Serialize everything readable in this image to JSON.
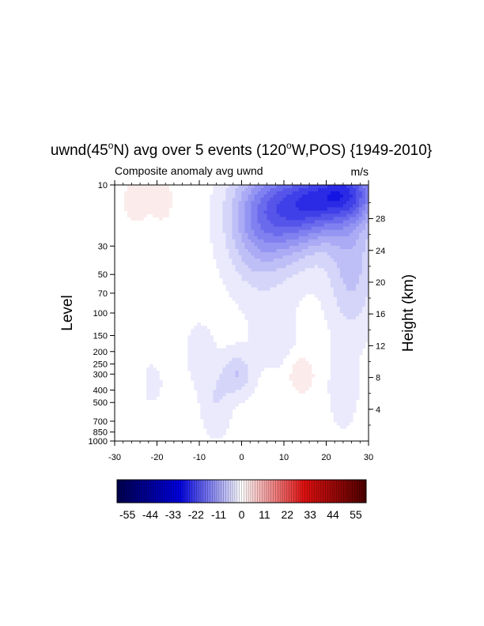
{
  "chart_data": {
    "type": "heatmap",
    "title_main": "uwnd(45",
    "title_sup": "o",
    "title_mid": "N) avg over 5 events (120",
    "title_sup2": "o",
    "title_end": "W,POS) {1949-2010}",
    "subtitle_left": "Composite anomaly avg uwnd",
    "subtitle_right": "m/s",
    "ylabel": "Level",
    "y2label": "Height (km)",
    "xlabel": "",
    "xlim": [
      -30,
      30
    ],
    "ylim": [
      1000,
      10
    ],
    "y_scale": "log",
    "x_ticks": [
      {
        "v": -30,
        "label": "-30"
      },
      {
        "v": -20,
        "label": "-20"
      },
      {
        "v": -10,
        "label": "-10"
      },
      {
        "v": 0,
        "label": "0"
      },
      {
        "v": 10,
        "label": "10"
      },
      {
        "v": 20,
        "label": "20"
      },
      {
        "v": 30,
        "label": "30"
      }
    ],
    "y_ticks": [
      {
        "v": 1000,
        "label": "1000"
      },
      {
        "v": 850,
        "label": "850"
      },
      {
        "v": 700,
        "label": "700"
      },
      {
        "v": 500,
        "label": "500"
      },
      {
        "v": 400,
        "label": "400"
      },
      {
        "v": 300,
        "label": "300"
      },
      {
        "v": 250,
        "label": "250"
      },
      {
        "v": 200,
        "label": "200"
      },
      {
        "v": 150,
        "label": "150"
      },
      {
        "v": 100,
        "label": "100"
      },
      {
        "v": 70,
        "label": "70"
      },
      {
        "v": 50,
        "label": "50"
      },
      {
        "v": 30,
        "label": "30"
      },
      {
        "v": 10,
        "label": "10"
      }
    ],
    "y2_ticks": [
      {
        "v": 4,
        "label": "4"
      },
      {
        "v": 8,
        "label": "8"
      },
      {
        "v": 12,
        "label": "12"
      },
      {
        "v": 16,
        "label": "16"
      },
      {
        "v": 20,
        "label": "20"
      },
      {
        "v": 24,
        "label": "24"
      },
      {
        "v": 28,
        "label": "28"
      }
    ],
    "scale_height_km": 7,
    "colorbar": {
      "range": [
        -60,
        60
      ],
      "labels": [
        "-55",
        "-44",
        "-33",
        "-22",
        "-11",
        "0",
        "11",
        "22",
        "33",
        "44",
        "55"
      ],
      "label_values": [
        -55,
        -44,
        -33,
        -22,
        -11,
        0,
        11,
        22,
        33,
        44,
        55
      ],
      "colors": {
        "neg_end": "#00004d",
        "neg_mid": "#0000e0",
        "zero": "#ffffff",
        "pos_mid": "#e01010",
        "pos_end": "#4d0000"
      }
    },
    "field_features": [
      {
        "x": 18,
        "p": 13,
        "v": -18,
        "sx": 9,
        "sp": 0.45
      },
      {
        "x": 25,
        "p": 11,
        "v": -10,
        "sx": 5,
        "sp": 0.3
      },
      {
        "x": 10,
        "p": 20,
        "v": -10,
        "sx": 7,
        "sp": 0.6
      },
      {
        "x": 3,
        "p": 22,
        "v": -6,
        "sx": 5,
        "sp": 0.8
      },
      {
        "x": 26,
        "p": 45,
        "v": -7,
        "sx": 4,
        "sp": 0.8
      },
      {
        "x": -1,
        "p": 300,
        "v": -6,
        "sx": 2.5,
        "sp": 0.28
      },
      {
        "x": -6,
        "p": 500,
        "v": -3.5,
        "sx": 2.5,
        "sp": 0.45
      },
      {
        "x": -22,
        "p": 350,
        "v": -2,
        "sx": 3,
        "sp": 0.35
      },
      {
        "x": -10,
        "p": 200,
        "v": -2,
        "sx": 3,
        "sp": 0.5
      },
      {
        "x": 8,
        "p": 150,
        "v": -2.5,
        "sx": 4,
        "sp": 0.5
      },
      {
        "x": 24,
        "p": 400,
        "v": -3,
        "sx": 2.5,
        "sp": 0.5
      },
      {
        "x": 14,
        "p": 300,
        "v": 4,
        "sx": 2,
        "sp": 0.22
      },
      {
        "x": -25,
        "p": 13,
        "v": 3,
        "sx": 2,
        "sp": 0.3
      },
      {
        "x": -19,
        "p": 13,
        "v": 2.5,
        "sx": 2,
        "sp": 0.3
      },
      {
        "x": -24,
        "p": 330,
        "v": 2.5,
        "sx": 1,
        "sp": 0.2
      }
    ]
  }
}
